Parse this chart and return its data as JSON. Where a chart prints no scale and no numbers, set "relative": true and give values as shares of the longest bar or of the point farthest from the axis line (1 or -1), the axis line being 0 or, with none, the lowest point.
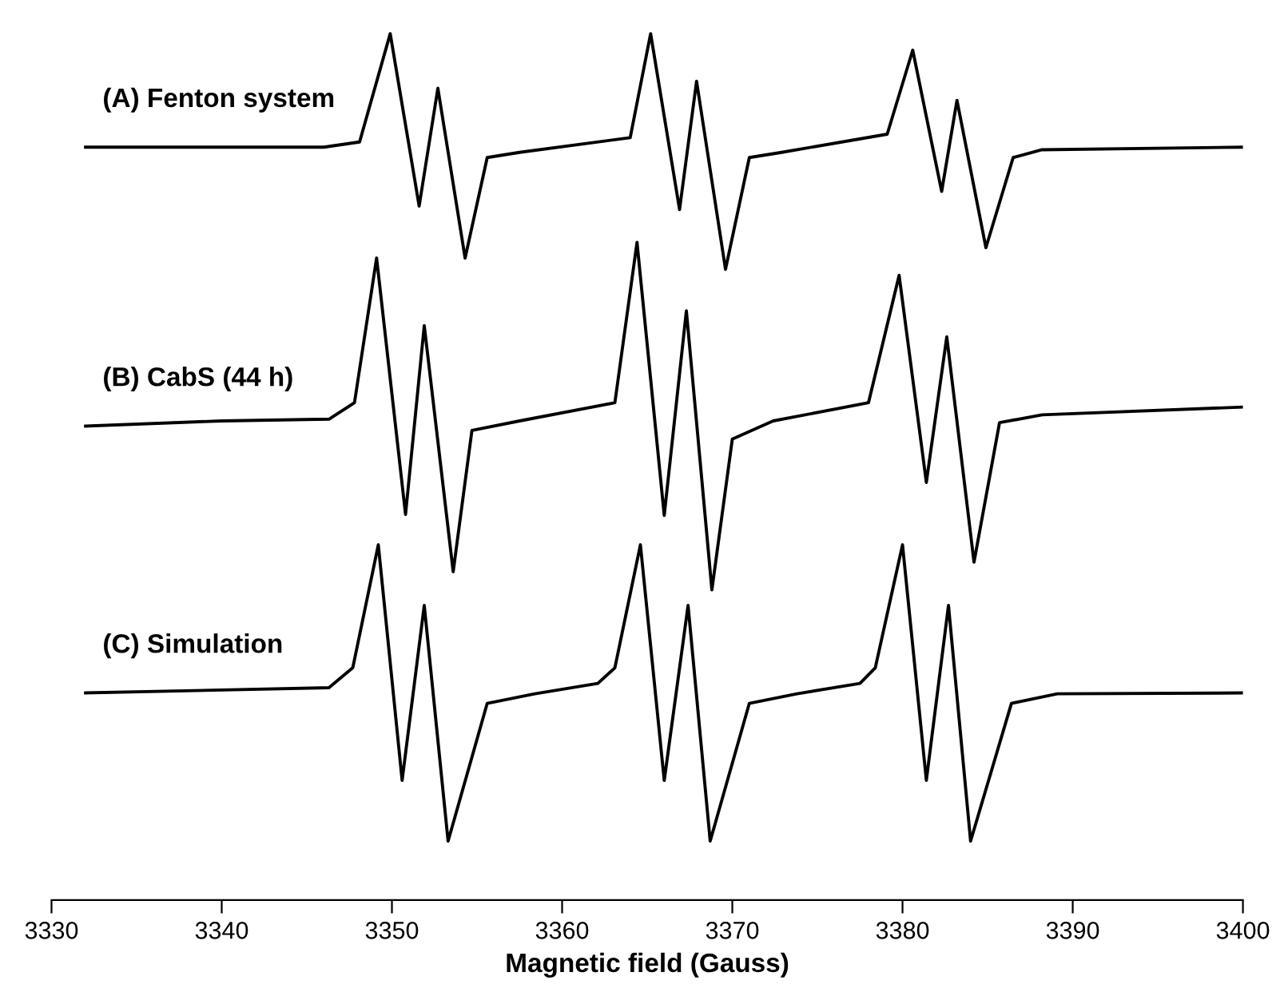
{
  "chart_data": {
    "type": "line",
    "xlabel": "Magnetic field (Gauss)",
    "relative": true,
    "xlim": [
      3330,
      3400
    ],
    "xticks": [
      3330,
      3340,
      3350,
      3360,
      3370,
      3380,
      3390,
      3400
    ],
    "grid": false,
    "legend": false,
    "marker": "none",
    "line_style": "solid",
    "series": [
      {
        "name": "(A) Fenton system",
        "color": "#000000",
        "x": [
          3332,
          3346,
          3348.1,
          3349.9,
          3351.6,
          3352.7,
          3354.3,
          3355.6,
          3357.5,
          3364.0,
          3365.2,
          3366.9,
          3367.9,
          3369.6,
          3371.0,
          3372.9,
          3379.1,
          3380.6,
          3382.3,
          3383.2,
          3384.9,
          3386.5,
          3388.2,
          3400
        ],
        "values": [
          0.869,
          0.869,
          0.875,
          1.0,
          0.801,
          0.937,
          0.741,
          0.857,
          0.863,
          0.88,
          1.0,
          0.797,
          0.945,
          0.728,
          0.857,
          0.863,
          0.884,
          0.981,
          0.818,
          0.923,
          0.753,
          0.857,
          0.866,
          0.869
        ]
      },
      {
        "name": "(B) CabS (44 h)",
        "color": "#000000",
        "x": [
          3332,
          3340,
          3346.3,
          3347.8,
          3349.1,
          3350.8,
          3351.9,
          3353.6,
          3354.7,
          3357.5,
          3363.1,
          3364.4,
          3366.0,
          3367.3,
          3368.8,
          3370.0,
          3372.4,
          3378.0,
          3379.8,
          3381.4,
          3382.6,
          3384.2,
          3385.7,
          3388.2,
          3400
        ],
        "values": [
          0.547,
          0.553,
          0.555,
          0.574,
          0.741,
          0.445,
          0.663,
          0.379,
          0.542,
          0.553,
          0.574,
          0.759,
          0.444,
          0.68,
          0.358,
          0.532,
          0.553,
          0.574,
          0.721,
          0.482,
          0.65,
          0.39,
          0.551,
          0.56,
          0.569
        ]
      },
      {
        "name": "(C) Simulation",
        "color": "#000000",
        "x": [
          3332,
          3346.3,
          3347.7,
          3349.2,
          3350.6,
          3351.9,
          3353.3,
          3355.6,
          3358.4,
          3362.1,
          3363.1,
          3364.6,
          3366.0,
          3367.4,
          3368.7,
          3371.0,
          3373.8,
          3377.5,
          3378.4,
          3380.0,
          3381.4,
          3382.7,
          3384.0,
          3386.4,
          3389.1,
          3400
        ],
        "values": [
          0.239,
          0.245,
          0.268,
          0.41,
          0.138,
          0.34,
          0.068,
          0.227,
          0.238,
          0.25,
          0.268,
          0.41,
          0.138,
          0.34,
          0.068,
          0.227,
          0.238,
          0.25,
          0.268,
          0.41,
          0.138,
          0.34,
          0.068,
          0.227,
          0.238,
          0.239
        ]
      }
    ]
  }
}
